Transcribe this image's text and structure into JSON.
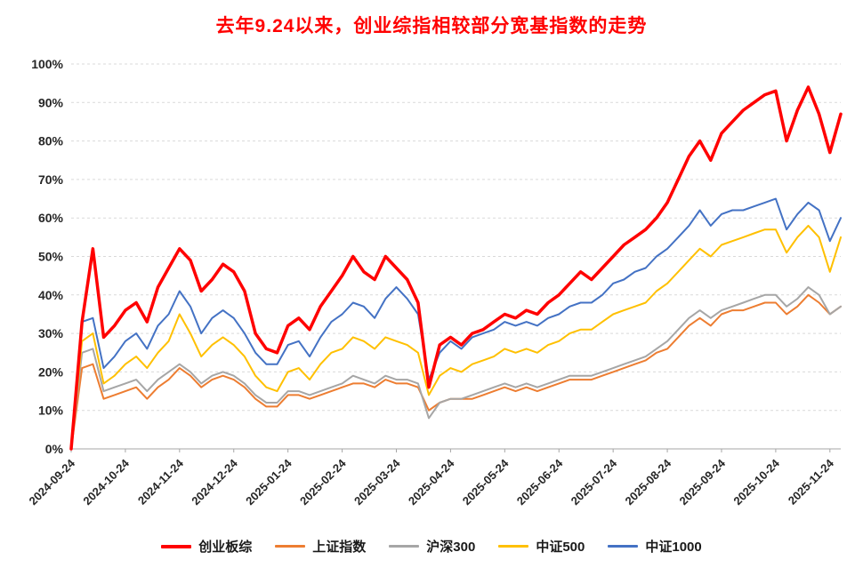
{
  "title": "去年9.24以来，创业综指相较部分宽基指数的走势",
  "title_color": "#FF0000",
  "chart_data": {
    "type": "line",
    "title": "去年9.24以来，创业综指相较部分宽基指数的走势",
    "xlabel": "",
    "ylabel": "",
    "x_unit": "months since 2024-09-24",
    "x_range": [
      0,
      14.2
    ],
    "ylim": [
      0,
      100
    ],
    "y_ticks": [
      0,
      10,
      20,
      30,
      40,
      50,
      60,
      70,
      80,
      90,
      100
    ],
    "y_tick_suffix": "%",
    "grid": "dashed-horizontal",
    "grid_color": "#D9D9D9",
    "axis_color": "#A6A6A6",
    "legend_position": "bottom",
    "x_ticks": [
      {
        "pos": 0,
        "label": "2024-09-24"
      },
      {
        "pos": 1,
        "label": "2024-10-24"
      },
      {
        "pos": 2,
        "label": "2024-11-24"
      },
      {
        "pos": 3,
        "label": "2024-12-24"
      },
      {
        "pos": 4,
        "label": "2025-01-24"
      },
      {
        "pos": 5,
        "label": "2025-02-24"
      },
      {
        "pos": 6,
        "label": "2025-03-24"
      },
      {
        "pos": 7,
        "label": "2025-04-24"
      },
      {
        "pos": 8,
        "label": "2025-05-24"
      },
      {
        "pos": 9,
        "label": "2025-06-24"
      },
      {
        "pos": 10,
        "label": "2025-07-24"
      },
      {
        "pos": 11,
        "label": "2025-08-24"
      },
      {
        "pos": 12,
        "label": "2025-09-24"
      },
      {
        "pos": 13,
        "label": "2025-10-24"
      },
      {
        "pos": 14,
        "label": "2025-11-24"
      }
    ],
    "x": [
      0,
      0.2,
      0.4,
      0.6,
      0.8,
      1,
      1.2,
      1.4,
      1.6,
      1.8,
      2,
      2.2,
      2.4,
      2.6,
      2.8,
      3,
      3.2,
      3.4,
      3.6,
      3.8,
      4,
      4.2,
      4.4,
      4.6,
      4.8,
      5,
      5.2,
      5.4,
      5.6,
      5.8,
      6,
      6.2,
      6.4,
      6.6,
      6.8,
      7,
      7.2,
      7.4,
      7.6,
      7.8,
      8,
      8.2,
      8.4,
      8.6,
      8.8,
      9,
      9.2,
      9.4,
      9.6,
      9.8,
      10,
      10.2,
      10.4,
      10.6,
      10.8,
      11,
      11.2,
      11.4,
      11.6,
      11.8,
      12,
      12.2,
      12.4,
      12.6,
      12.8,
      13,
      13.2,
      13.4,
      13.6,
      13.8,
      14,
      14.2
    ],
    "series": [
      {
        "name": "创业板综",
        "color": "#FF0000",
        "width": 3.5,
        "values": [
          0,
          33,
          52,
          29,
          32,
          36,
          38,
          33,
          42,
          47,
          52,
          49,
          41,
          44,
          48,
          46,
          41,
          30,
          26,
          25,
          32,
          34,
          31,
          37,
          41,
          45,
          50,
          46,
          44,
          50,
          47,
          44,
          38,
          16,
          27,
          29,
          27,
          30,
          31,
          33,
          35,
          34,
          36,
          35,
          38,
          40,
          43,
          46,
          44,
          47,
          50,
          53,
          55,
          57,
          60,
          64,
          70,
          76,
          80,
          75,
          82,
          85,
          88,
          90,
          92,
          93,
          80,
          88,
          94,
          87,
          77,
          87
        ]
      },
      {
        "name": "上证指数",
        "color": "#ED7D31",
        "width": 2,
        "values": [
          0,
          21,
          22,
          13,
          14,
          15,
          16,
          13,
          16,
          18,
          21,
          19,
          16,
          18,
          19,
          18,
          16,
          13,
          11,
          11,
          14,
          14,
          13,
          14,
          15,
          16,
          17,
          17,
          16,
          18,
          17,
          17,
          16,
          10,
          12,
          13,
          13,
          13,
          14,
          15,
          16,
          15,
          16,
          15,
          16,
          17,
          18,
          18,
          18,
          19,
          20,
          21,
          22,
          23,
          25,
          26,
          29,
          32,
          34,
          32,
          35,
          36,
          36,
          37,
          38,
          38,
          35,
          37,
          40,
          38,
          35,
          37
        ]
      },
      {
        "name": "沪深300",
        "color": "#A6A6A6",
        "width": 2,
        "values": [
          0,
          25,
          26,
          15,
          16,
          17,
          18,
          15,
          18,
          20,
          22,
          20,
          17,
          19,
          20,
          19,
          17,
          14,
          12,
          12,
          15,
          15,
          14,
          15,
          16,
          17,
          19,
          18,
          17,
          19,
          18,
          18,
          17,
          8,
          12,
          13,
          13,
          14,
          15,
          16,
          17,
          16,
          17,
          16,
          17,
          18,
          19,
          19,
          19,
          20,
          21,
          22,
          23,
          24,
          26,
          28,
          31,
          34,
          36,
          34,
          36,
          37,
          38,
          39,
          40,
          40,
          37,
          39,
          42,
          40,
          35,
          37
        ]
      },
      {
        "name": "中证500",
        "color": "#FFC000",
        "width": 2,
        "values": [
          0,
          28,
          30,
          17,
          19,
          22,
          24,
          21,
          25,
          28,
          35,
          30,
          24,
          27,
          29,
          27,
          24,
          19,
          16,
          15,
          20,
          21,
          18,
          22,
          25,
          26,
          29,
          28,
          26,
          29,
          28,
          27,
          25,
          14,
          19,
          21,
          20,
          22,
          23,
          24,
          26,
          25,
          26,
          25,
          27,
          28,
          30,
          31,
          31,
          33,
          35,
          36,
          37,
          38,
          41,
          43,
          46,
          49,
          52,
          50,
          53,
          54,
          55,
          56,
          57,
          57,
          51,
          55,
          58,
          55,
          46,
          55
        ]
      },
      {
        "name": "中证1000",
        "color": "#4472C4",
        "width": 2,
        "values": [
          0,
          33,
          34,
          21,
          24,
          28,
          30,
          26,
          32,
          35,
          41,
          37,
          30,
          34,
          36,
          34,
          30,
          25,
          22,
          22,
          27,
          28,
          24,
          29,
          33,
          35,
          38,
          37,
          34,
          39,
          42,
          39,
          35,
          18,
          25,
          28,
          26,
          29,
          30,
          31,
          33,
          32,
          33,
          32,
          34,
          35,
          37,
          38,
          38,
          40,
          43,
          44,
          46,
          47,
          50,
          52,
          55,
          58,
          62,
          58,
          61,
          62,
          62,
          63,
          64,
          65,
          57,
          61,
          64,
          62,
          54,
          60
        ]
      }
    ]
  }
}
